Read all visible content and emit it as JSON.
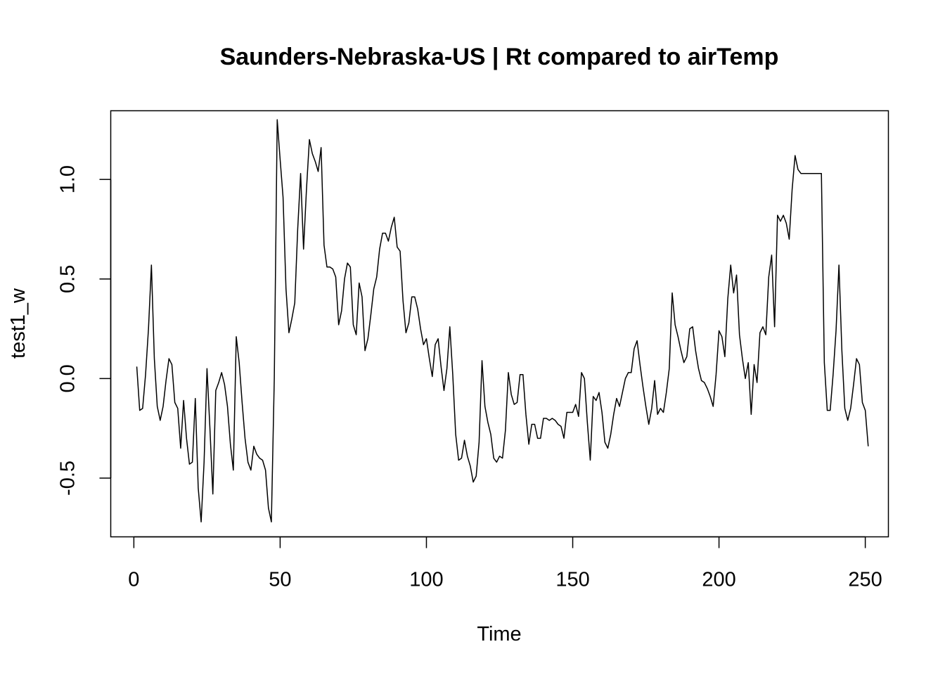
{
  "chart_data": {
    "type": "line",
    "title": "Saunders-Nebraska-US | Rt compared to airTemp",
    "xlabel": "Time",
    "ylabel": "test1_w",
    "xlim": [
      -7.9,
      257.9
    ],
    "ylim": [
      -0.795,
      1.345
    ],
    "x_ticks": [
      0,
      50,
      100,
      150,
      200,
      250
    ],
    "y_ticks": [
      -0.5,
      0.0,
      0.5,
      1.0
    ],
    "x_tick_labels": [
      "0",
      "50",
      "100",
      "150",
      "200",
      "250"
    ],
    "y_tick_labels": [
      "-0.5",
      "0.0",
      "0.5",
      "1.0"
    ],
    "grid": false,
    "legend": "none",
    "line_color": "#000000",
    "x_start": 1,
    "values": [
      0.06,
      -0.16,
      -0.15,
      0.02,
      0.25,
      0.57,
      0.1,
      -0.14,
      -0.21,
      -0.14,
      -0.01,
      0.1,
      0.07,
      -0.12,
      -0.15,
      -0.35,
      -0.11,
      -0.3,
      -0.43,
      -0.42,
      -0.1,
      -0.55,
      -0.72,
      -0.42,
      0.05,
      -0.25,
      -0.58,
      -0.06,
      -0.02,
      0.03,
      -0.03,
      -0.14,
      -0.33,
      -0.46,
      0.21,
      0.08,
      -0.12,
      -0.3,
      -0.42,
      -0.46,
      -0.34,
      -0.38,
      -0.4,
      -0.41,
      -0.46,
      -0.65,
      -0.72,
      0.0,
      1.3,
      1.1,
      0.91,
      0.45,
      0.23,
      0.3,
      0.38,
      0.75,
      1.03,
      0.65,
      0.95,
      1.2,
      1.13,
      1.09,
      1.04,
      1.16,
      0.67,
      0.56,
      0.56,
      0.55,
      0.51,
      0.27,
      0.34,
      0.5,
      0.58,
      0.56,
      0.27,
      0.22,
      0.48,
      0.41,
      0.14,
      0.2,
      0.32,
      0.45,
      0.51,
      0.65,
      0.73,
      0.73,
      0.69,
      0.76,
      0.81,
      0.66,
      0.64,
      0.39,
      0.23,
      0.28,
      0.41,
      0.41,
      0.35,
      0.25,
      0.17,
      0.2,
      0.1,
      0.01,
      0.17,
      0.2,
      0.06,
      -0.06,
      0.05,
      0.26,
      0.02,
      -0.28,
      -0.41,
      -0.4,
      -0.31,
      -0.39,
      -0.44,
      -0.52,
      -0.49,
      -0.32,
      0.09,
      -0.14,
      -0.22,
      -0.28,
      -0.4,
      -0.42,
      -0.39,
      -0.4,
      -0.26,
      0.03,
      -0.08,
      -0.13,
      -0.12,
      0.02,
      0.02,
      -0.18,
      -0.33,
      -0.23,
      -0.23,
      -0.3,
      -0.3,
      -0.2,
      -0.2,
      -0.21,
      -0.2,
      -0.21,
      -0.23,
      -0.24,
      -0.3,
      -0.17,
      -0.17,
      -0.17,
      -0.13,
      -0.19,
      0.03,
      0.0,
      -0.22,
      -0.41,
      -0.09,
      -0.11,
      -0.07,
      -0.17,
      -0.32,
      -0.35,
      -0.28,
      -0.18,
      -0.1,
      -0.14,
      -0.07,
      0.0,
      0.03,
      0.03,
      0.15,
      0.19,
      0.07,
      -0.04,
      -0.14,
      -0.23,
      -0.15,
      -0.01,
      -0.18,
      -0.15,
      -0.17,
      -0.07,
      0.05,
      0.43,
      0.27,
      0.21,
      0.14,
      0.08,
      0.11,
      0.25,
      0.26,
      0.14,
      0.05,
      -0.01,
      -0.02,
      -0.05,
      -0.09,
      -0.14,
      0.02,
      0.24,
      0.21,
      0.11,
      0.4,
      0.57,
      0.43,
      0.52,
      0.22,
      0.1,
      0.0,
      0.08,
      -0.18,
      0.07,
      -0.02,
      0.23,
      0.26,
      0.22,
      0.51,
      0.62,
      0.26,
      0.82,
      0.79,
      0.82,
      0.78,
      0.7,
      0.95,
      1.12,
      1.05,
      1.03,
      1.03,
      1.03,
      1.03,
      1.03,
      1.03,
      1.03,
      1.03,
      0.08,
      -0.16,
      -0.16,
      0.02,
      0.24,
      0.57,
      0.14,
      -0.15,
      -0.21,
      -0.15,
      -0.03,
      0.1,
      0.07,
      -0.12,
      -0.16,
      -0.34
    ]
  }
}
